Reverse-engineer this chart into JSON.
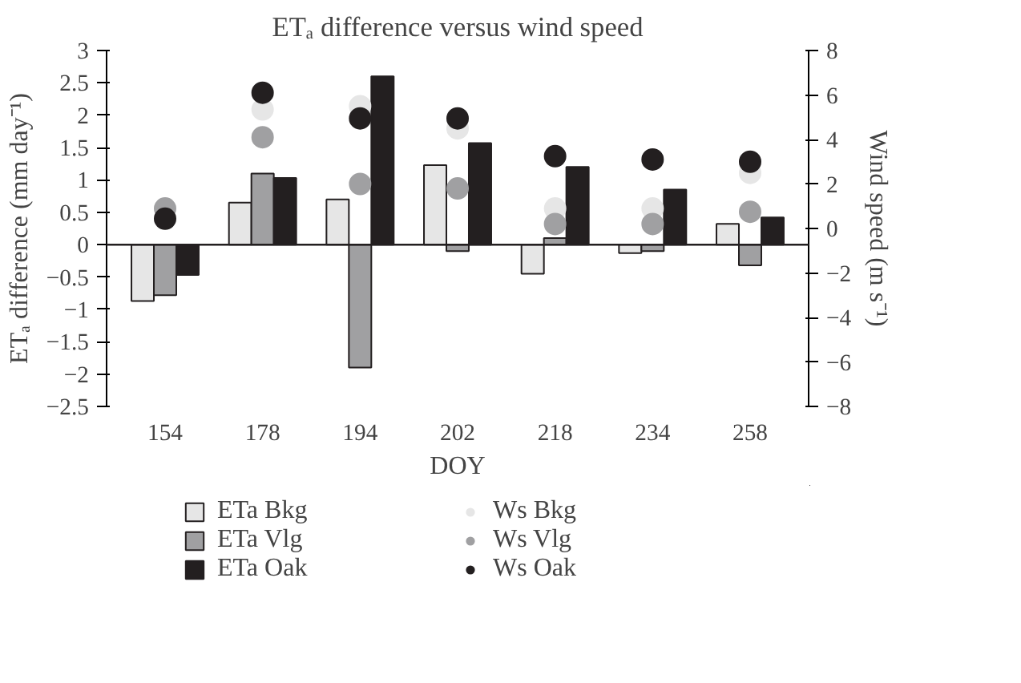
{
  "chart_data": {
    "type": "bar",
    "title": "ETₐ difference versus wind speed",
    "xlabel": "DOY",
    "ylabel": "ETₐ difference (mm day⁻¹)",
    "y2label": "Wind speed (m s⁻¹)",
    "categories": [
      "154",
      "178",
      "194",
      "202",
      "218",
      "234",
      "258"
    ],
    "series": [
      {
        "name": "ETa Bkg",
        "color": "#e6e6e6",
        "values": [
          -0.87,
          0.65,
          0.7,
          1.23,
          -0.45,
          -0.13,
          0.32
        ]
      },
      {
        "name": "ETa Vlg",
        "color": "#a0a0a2",
        "values": [
          -0.78,
          1.1,
          -1.9,
          -0.1,
          0.1,
          -0.1,
          -0.32
        ]
      },
      {
        "name": "ETa Oak",
        "color": "#231f20",
        "values": [
          -0.47,
          1.03,
          2.6,
          1.57,
          1.2,
          0.85,
          0.42
        ]
      },
      {
        "name": "Ws Bkg",
        "type": "scatter",
        "axis": "y2",
        "color": "#e6e6e6",
        "values": [
          null,
          5.35,
          5.5,
          4.5,
          0.9,
          0.9,
          2.5
        ]
      },
      {
        "name": "Ws Vlg",
        "type": "scatter",
        "axis": "y2",
        "color": "#a0a0a2",
        "values": [
          0.9,
          4.1,
          2.0,
          1.8,
          0.2,
          0.2,
          0.75
        ]
      },
      {
        "name": "Ws Oak",
        "type": "scatter",
        "axis": "y2",
        "color": "#231f20",
        "values": [
          0.44,
          6.1,
          4.95,
          4.95,
          3.25,
          3.1,
          3.0
        ]
      }
    ],
    "ylim": [
      -2.5,
      3
    ],
    "yticks": [
      -2.5,
      -2,
      -1.5,
      -1,
      -0.5,
      0,
      0.5,
      1,
      1.5,
      2,
      2.5,
      3
    ],
    "y2lim": [
      -8,
      8
    ],
    "y2ticks": [
      -8,
      -6,
      -4,
      -2,
      0,
      2,
      4,
      6,
      8
    ],
    "ref_lines": [
      {
        "axis": "y",
        "value": 0
      }
    ],
    "grid": false,
    "legend": "bottom",
    "marker": "circle"
  }
}
